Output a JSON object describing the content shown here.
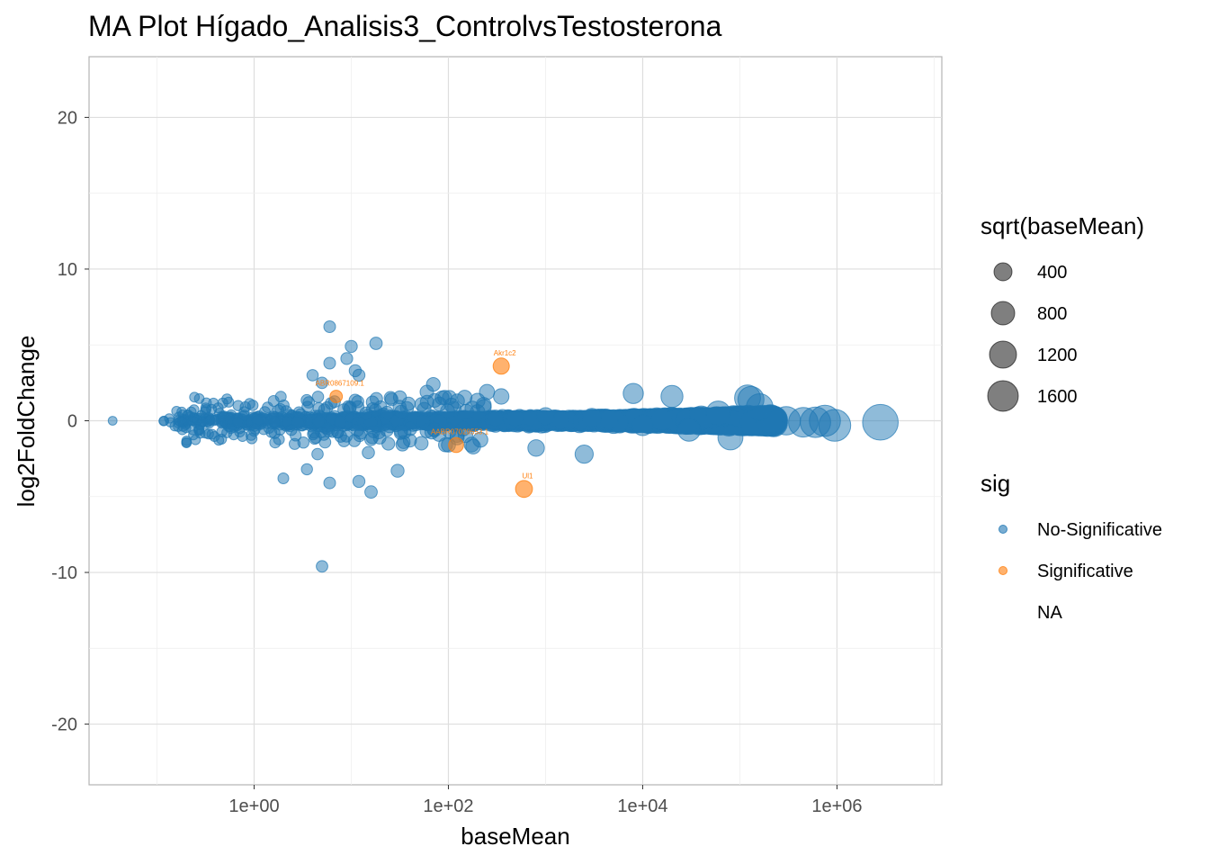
{
  "chart_data": {
    "type": "scatter",
    "title": "MA Plot Hígado_Analisis3_ControlvsTestosterona",
    "xlabel": "baseMean",
    "ylabel": "log2FoldChange",
    "x_scale": "log10",
    "xlim": [
      0.02,
      12000000
    ],
    "ylim": [
      -24,
      24
    ],
    "x_ticks": [
      1,
      100,
      10000,
      1000000
    ],
    "x_tick_labels": [
      "1e+00",
      "1e+02",
      "1e+04",
      "1e+06"
    ],
    "y_ticks": [
      -20,
      -10,
      0,
      10,
      20
    ],
    "y_tick_labels": [
      "-20",
      "-10",
      "0",
      "10",
      "20"
    ],
    "grid": true,
    "legend_position": "right",
    "colors": {
      "No-Significative": "#1f77b4",
      "Significative": "#ff7f0e"
    },
    "size_legend": {
      "title": "sqrt(baseMean)",
      "values": [
        400,
        800,
        1200,
        1600
      ],
      "labels": [
        "400",
        "800",
        "1200",
        "1600"
      ]
    },
    "color_legend": {
      "title": "sig",
      "entries": [
        "No-Significative",
        "Significative",
        "NA"
      ]
    },
    "significant_points": [
      {
        "label": "ABR0867109.1",
        "x": 7,
        "y": 1.6
      },
      {
        "label": "Akr1c2",
        "x": 350,
        "y": 3.6
      },
      {
        "label": "AABR07029553.1",
        "x": 120,
        "y": -1.6
      },
      {
        "label": "Ul1",
        "x": 600,
        "y": -4.5
      }
    ],
    "outlier_points": [
      {
        "x": 6,
        "y": 6.2
      },
      {
        "x": 10,
        "y": 4.9
      },
      {
        "x": 18,
        "y": 5.1
      },
      {
        "x": 9,
        "y": 4.1
      },
      {
        "x": 6,
        "y": 3.8
      },
      {
        "x": 11,
        "y": 3.3
      },
      {
        "x": 12,
        "y": 3.0
      },
      {
        "x": 4,
        "y": 3.0
      },
      {
        "x": 5,
        "y": 2.5
      },
      {
        "x": 70,
        "y": 2.4
      },
      {
        "x": 60,
        "y": 1.9
      },
      {
        "x": 250,
        "y": 1.9
      },
      {
        "x": 350,
        "y": 1.6
      },
      {
        "x": 8000,
        "y": 1.8
      },
      {
        "x": 20000,
        "y": 1.6
      },
      {
        "x": 120000,
        "y": 1.5
      },
      {
        "x": 100,
        "y": -1.6
      },
      {
        "x": 180,
        "y": -1.7
      },
      {
        "x": 800,
        "y": -1.8
      },
      {
        "x": 2500,
        "y": -2.2
      },
      {
        "x": 80000,
        "y": -1.1
      },
      {
        "x": 3.5,
        "y": -3.2
      },
      {
        "x": 30,
        "y": -3.3
      },
      {
        "x": 2,
        "y": -3.8
      },
      {
        "x": 6,
        "y": -4.1
      },
      {
        "x": 12,
        "y": -4.0
      },
      {
        "x": 16,
        "y": -4.7
      },
      {
        "x": 5,
        "y": -9.6
      },
      {
        "x": 4.5,
        "y": -2.2
      },
      {
        "x": 15,
        "y": -2.1
      }
    ],
    "large_points": [
      {
        "x": 300000,
        "y": 0.0
      },
      {
        "x": 450000,
        "y": -0.1
      },
      {
        "x": 600000,
        "y": -0.1
      },
      {
        "x": 750000,
        "y": 0.0
      },
      {
        "x": 950000,
        "y": -0.3
      },
      {
        "x": 2800000,
        "y": -0.1
      },
      {
        "x": 200000,
        "y": 0.1
      },
      {
        "x": 130000,
        "y": 1.4
      },
      {
        "x": 160000,
        "y": 0.9
      },
      {
        "x": 1000,
        "y": 0.3
      },
      {
        "x": 3000,
        "y": 0.2
      },
      {
        "x": 10000,
        "y": -0.3
      },
      {
        "x": 40000,
        "y": 0.2
      },
      {
        "x": 30000,
        "y": -0.6
      },
      {
        "x": 60000,
        "y": 0.5
      }
    ]
  }
}
